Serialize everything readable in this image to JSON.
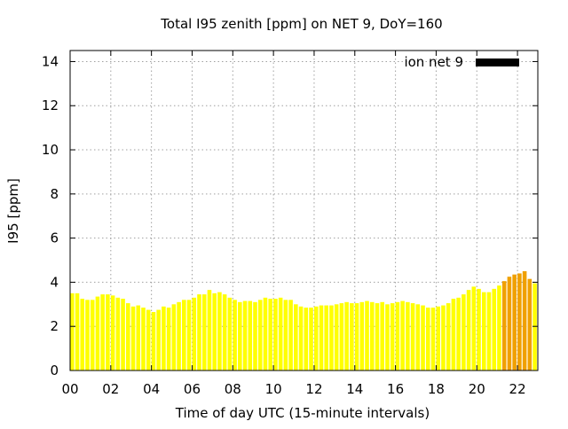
{
  "chart_data": {
    "type": "bar",
    "title": "Total I95 zenith [ppm] on NET 9, DoY=160",
    "xlabel": "Time of day UTC (15-minute intervals)",
    "ylabel": "I95 [ppm]",
    "xlim": [
      0,
      23
    ],
    "ylim": [
      0,
      14.5
    ],
    "x_ticks": [
      0,
      2,
      4,
      6,
      8,
      10,
      12,
      14,
      16,
      18,
      20,
      22
    ],
    "x_tick_labels": [
      "00",
      "02",
      "04",
      "06",
      "08",
      "10",
      "12",
      "14",
      "16",
      "18",
      "20",
      "22"
    ],
    "y_ticks": [
      0,
      2,
      4,
      6,
      8,
      10,
      12,
      14
    ],
    "y_tick_labels": [
      "0",
      "2",
      "4",
      "6",
      "8",
      "10",
      "12",
      "14"
    ],
    "grid": true,
    "legend": {
      "placement": "top-right",
      "entries": [
        {
          "label": "ion net 9",
          "color": "#000000"
        }
      ]
    },
    "bar_interval_hours": 0.25,
    "colors": {
      "normal": "#ffff00",
      "elevated": "#f0a000"
    },
    "elevated_threshold": 4.0,
    "series": [
      {
        "x": [
          0.0,
          0.25,
          0.5,
          0.75,
          1.0,
          1.25,
          1.5,
          1.75,
          2.0,
          2.25,
          2.5,
          2.75,
          3.0,
          3.25,
          3.5,
          3.75,
          4.0,
          4.25,
          4.5,
          4.75,
          5.0,
          5.25,
          5.5,
          5.75,
          6.0,
          6.25,
          6.5,
          6.75,
          7.0,
          7.25,
          7.5,
          7.75,
          8.0,
          8.25,
          8.5,
          8.75,
          9.0,
          9.25,
          9.5,
          9.75,
          10.0,
          10.25,
          10.5,
          10.75,
          11.0,
          11.25,
          11.5,
          11.75,
          12.0,
          12.25,
          12.5,
          12.75,
          13.0,
          13.25,
          13.5,
          13.75,
          14.0,
          14.25,
          14.5,
          14.75,
          15.0,
          15.25,
          15.5,
          15.75,
          16.0,
          16.25,
          16.5,
          16.75,
          17.0,
          17.25,
          17.5,
          17.75,
          18.0,
          18.25,
          18.5,
          18.75,
          19.0,
          19.25,
          19.5,
          19.75,
          20.0,
          20.25,
          20.5,
          20.75,
          21.0,
          21.25,
          21.5,
          21.75,
          22.0,
          22.25,
          22.5,
          22.75
        ],
        "values": [
          3.5,
          3.5,
          3.25,
          3.2,
          3.2,
          3.35,
          3.45,
          3.45,
          3.4,
          3.3,
          3.25,
          3.05,
          2.9,
          2.95,
          2.85,
          2.75,
          2.65,
          2.75,
          2.9,
          2.85,
          3.0,
          3.1,
          3.2,
          3.2,
          3.3,
          3.45,
          3.45,
          3.65,
          3.5,
          3.55,
          3.45,
          3.3,
          3.2,
          3.1,
          3.15,
          3.15,
          3.1,
          3.2,
          3.3,
          3.25,
          3.25,
          3.3,
          3.2,
          3.2,
          3.0,
          2.9,
          2.85,
          2.85,
          2.9,
          2.95,
          2.95,
          2.95,
          3.0,
          3.05,
          3.1,
          3.05,
          3.05,
          3.1,
          3.15,
          3.1,
          3.05,
          3.1,
          3.0,
          3.05,
          3.1,
          3.15,
          3.1,
          3.05,
          3.0,
          2.95,
          2.85,
          2.85,
          2.9,
          2.95,
          3.05,
          3.25,
          3.3,
          3.45,
          3.65,
          3.8,
          3.7,
          3.55,
          3.55,
          3.7,
          3.85,
          4.05,
          4.25,
          4.35,
          4.4,
          4.5,
          4.15,
          3.95
        ]
      }
    ]
  }
}
